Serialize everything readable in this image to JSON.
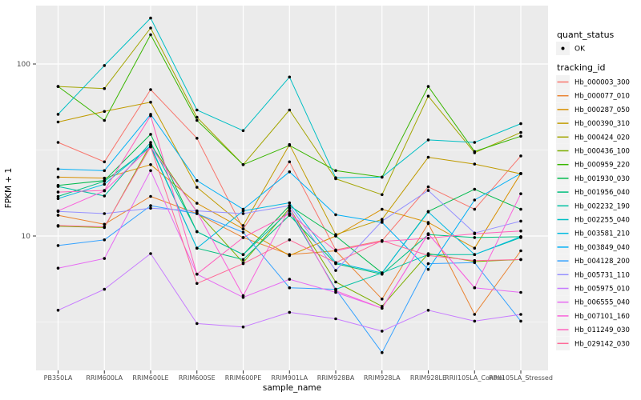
{
  "figure": {
    "background": "#FFFFFF",
    "panel_background": "#EBEBEB",
    "gridline_color": "#FFFFFF",
    "axis_text_color": "#4D4D4D",
    "axis_title_color": "#000000",
    "tick_mark_color": "#333333",
    "point_color": "#000000",
    "legend_key_background": "#F2F2F2"
  },
  "chart_data": {
    "type": "line",
    "title": "",
    "xlabel": "sample_name",
    "ylabel": "FPKM + 1",
    "y_scale": "log10",
    "grid": true,
    "legend_position": "right",
    "y_tick_labels": [
      "100",
      "10"
    ],
    "y_tick_values": [
      100,
      10
    ],
    "y_minor_values": [
      31.62,
      3.162
    ],
    "ylim": [
      1.7,
      210
    ],
    "categories": [
      "PB350LA",
      "RRIM600LA",
      "RRIM600LE",
      "RRIM600SE",
      "RRIM600PE",
      "RRIM901LA",
      "RRIM928BA",
      "RRIM928LA",
      "RRIM928LE",
      "RRII105LA_Control",
      "RRII105LA_Stressed"
    ],
    "legend": {
      "quant_status_title": "quant_status",
      "quant_status_items": [
        {
          "label": "OK",
          "marker": "point",
          "color": "#000000"
        }
      ],
      "tracking_title": "tracking_id"
    },
    "series": [
      {
        "name": "Hb_000003_300",
        "color": "#F8766D",
        "values": [
          35,
          27,
          71,
          37,
          11,
          27,
          8.3,
          9.4,
          19.3,
          14.3,
          29.2
        ]
      },
      {
        "name": "Hb_000077_010",
        "color": "#EA8331",
        "values": [
          13.2,
          11.7,
          17,
          13.5,
          9.8,
          7.8,
          8.2,
          4.3,
          11.8,
          3.5,
          8.2
        ]
      },
      {
        "name": "Hb_000287_050",
        "color": "#D89000",
        "values": [
          22,
          21.7,
          26,
          15.5,
          11,
          7.7,
          10,
          14.3,
          12,
          8.5,
          23.1
        ]
      },
      {
        "name": "Hb_000390_310",
        "color": "#C09B00",
        "values": [
          46,
          53,
          60,
          19.2,
          11.5,
          34,
          10.2,
          12.5,
          28.7,
          26.2,
          23
        ]
      },
      {
        "name": "Hb_000424_020",
        "color": "#A3A500",
        "values": [
          74,
          72,
          162,
          49,
          26,
          54,
          21.5,
          17.4,
          65,
          30.5,
          40
        ]
      },
      {
        "name": "Hb_000436_100",
        "color": "#7CAE00",
        "values": [
          11.4,
          11.2,
          34,
          13.8,
          7.0,
          14.5,
          5.4,
          3.9,
          7.9,
          7.1,
          7.3
        ]
      },
      {
        "name": "Hb_000959_220",
        "color": "#39B600",
        "values": [
          74,
          47,
          148,
          47,
          26,
          33.6,
          24,
          22,
          74,
          31,
          38
        ]
      },
      {
        "name": "Hb_001930_030",
        "color": "#00BB4E",
        "values": [
          19.7,
          21,
          39,
          10.6,
          7.8,
          15,
          10,
          6.1,
          13.9,
          18.7,
          14.3
        ]
      },
      {
        "name": "Hb_001956_040",
        "color": "#00BF7D",
        "values": [
          17,
          20.8,
          33,
          8.5,
          7.3,
          13.2,
          6.9,
          6.0,
          10.2,
          9.8,
          9.9
        ]
      },
      {
        "name": "Hb_002232_190",
        "color": "#00C1A3",
        "values": [
          19.4,
          17.1,
          35,
          10.6,
          7.8,
          14,
          4.9,
          6.1,
          7.8,
          7.8,
          9.8
        ]
      },
      {
        "name": "Hb_002255_040",
        "color": "#00BFC4",
        "values": [
          51,
          98,
          185,
          54,
          41,
          84,
          21.8,
          22,
          36.2,
          35,
          45
        ]
      },
      {
        "name": "Hb_003581_210",
        "color": "#00BAE0",
        "values": [
          16.5,
          20,
          33.5,
          8.5,
          14,
          15.6,
          7.0,
          6.1,
          13.8,
          7.8,
          9.9
        ]
      },
      {
        "name": "Hb_003849_040",
        "color": "#00B0F6",
        "values": [
          24.5,
          24,
          51,
          21,
          14.3,
          23.6,
          13.3,
          12,
          6.4,
          16.2,
          23.1
        ]
      },
      {
        "name": "Hb_004128_200",
        "color": "#35A2FF",
        "values": [
          8.8,
          9.5,
          15,
          13.5,
          10.5,
          5.0,
          4.9,
          2.1,
          6.9,
          7.0,
          3.2
        ]
      },
      {
        "name": "Hb_005731_110",
        "color": "#9590FF",
        "values": [
          13.9,
          13.5,
          14.5,
          14,
          13.5,
          15,
          6.3,
          12.2,
          18.4,
          10.4,
          12.2
        ]
      },
      {
        "name": "Hb_005975_010",
        "color": "#C77CFF",
        "values": [
          3.7,
          4.9,
          7.9,
          3.1,
          2.96,
          3.6,
          3.3,
          2.8,
          3.7,
          3.2,
          3.5
        ]
      },
      {
        "name": "Hb_006555_040",
        "color": "#E76BF3",
        "values": [
          6.5,
          7.4,
          24,
          6.0,
          4.4,
          5.6,
          4.7,
          3.8,
          10.3,
          5.0,
          4.7
        ]
      },
      {
        "name": "Hb_007101_160",
        "color": "#FA62DB",
        "values": [
          14,
          18.3,
          33,
          13.8,
          4.5,
          14.5,
          4.8,
          3.8,
          10.3,
          5.0,
          17.6
        ]
      },
      {
        "name": "Hb_011249_030",
        "color": "#FF62BC",
        "values": [
          18,
          18.4,
          50,
          6.0,
          9.8,
          13.5,
          8.2,
          9.3,
          9.7,
          10.3,
          10.7
        ]
      },
      {
        "name": "Hb_029142_030",
        "color": "#FF6A98",
        "values": [
          11.5,
          11.3,
          33,
          5.3,
          6.9,
          9.5,
          7.0,
          9.4,
          7.7,
          7.2,
          7.3
        ]
      }
    ]
  }
}
